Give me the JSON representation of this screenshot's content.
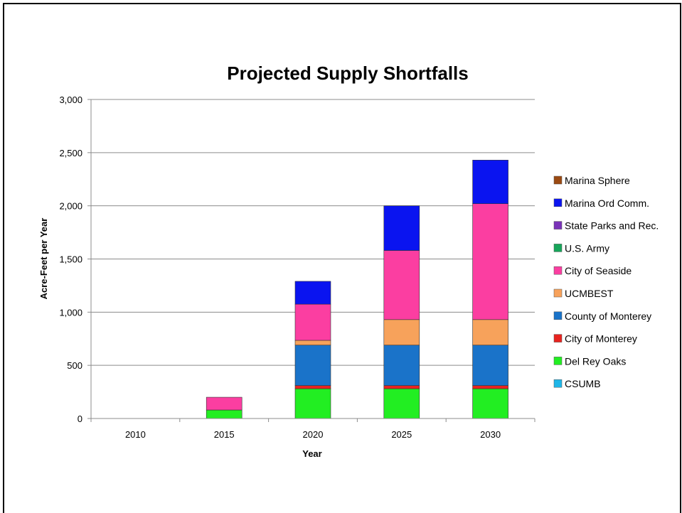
{
  "chart_data": {
    "type": "bar",
    "stacked": true,
    "title": "Projected Supply Shortfalls",
    "xlabel": "Year",
    "ylabel": "Acre-Feet per Year",
    "ylim": [
      0,
      3000
    ],
    "yticks": [
      0,
      500,
      1000,
      1500,
      2000,
      2500,
      3000
    ],
    "ytick_labels": [
      "0",
      "500",
      "1,000",
      "1,500",
      "2,000",
      "2,500",
      "3,000"
    ],
    "grid": true,
    "legend_position": "right",
    "categories": [
      "2010",
      "2015",
      "2020",
      "2025",
      "2030"
    ],
    "series": [
      {
        "name": "CSUMB",
        "color": "#1fb6e8",
        "values": [
          0,
          0,
          0,
          0,
          0
        ]
      },
      {
        "name": "Del Rey Oaks",
        "color": "#22ee22",
        "values": [
          0,
          80,
          280,
          280,
          280
        ]
      },
      {
        "name": "City of Monterey",
        "color": "#e8231f",
        "values": [
          0,
          0,
          30,
          30,
          30
        ]
      },
      {
        "name": "County of Monterey",
        "color": "#1a73c9",
        "values": [
          0,
          0,
          380,
          380,
          380
        ]
      },
      {
        "name": "UCMBEST",
        "color": "#f7a25b",
        "values": [
          0,
          0,
          45,
          240,
          240
        ]
      },
      {
        "name": "City of Seaside",
        "color": "#fb3ea1",
        "values": [
          0,
          120,
          340,
          650,
          1090
        ]
      },
      {
        "name": "U.S. Army",
        "color": "#17a65a",
        "values": [
          0,
          0,
          0,
          0,
          0
        ]
      },
      {
        "name": "State Parks and Rec.",
        "color": "#7a33b8",
        "values": [
          0,
          0,
          0,
          0,
          0
        ]
      },
      {
        "name": "Marina Ord Comm.",
        "color": "#0a14f0",
        "values": [
          0,
          0,
          215,
          420,
          410
        ]
      },
      {
        "name": "Marina Sphere",
        "color": "#9b4a12",
        "values": [
          0,
          0,
          0,
          0,
          0
        ]
      }
    ]
  }
}
